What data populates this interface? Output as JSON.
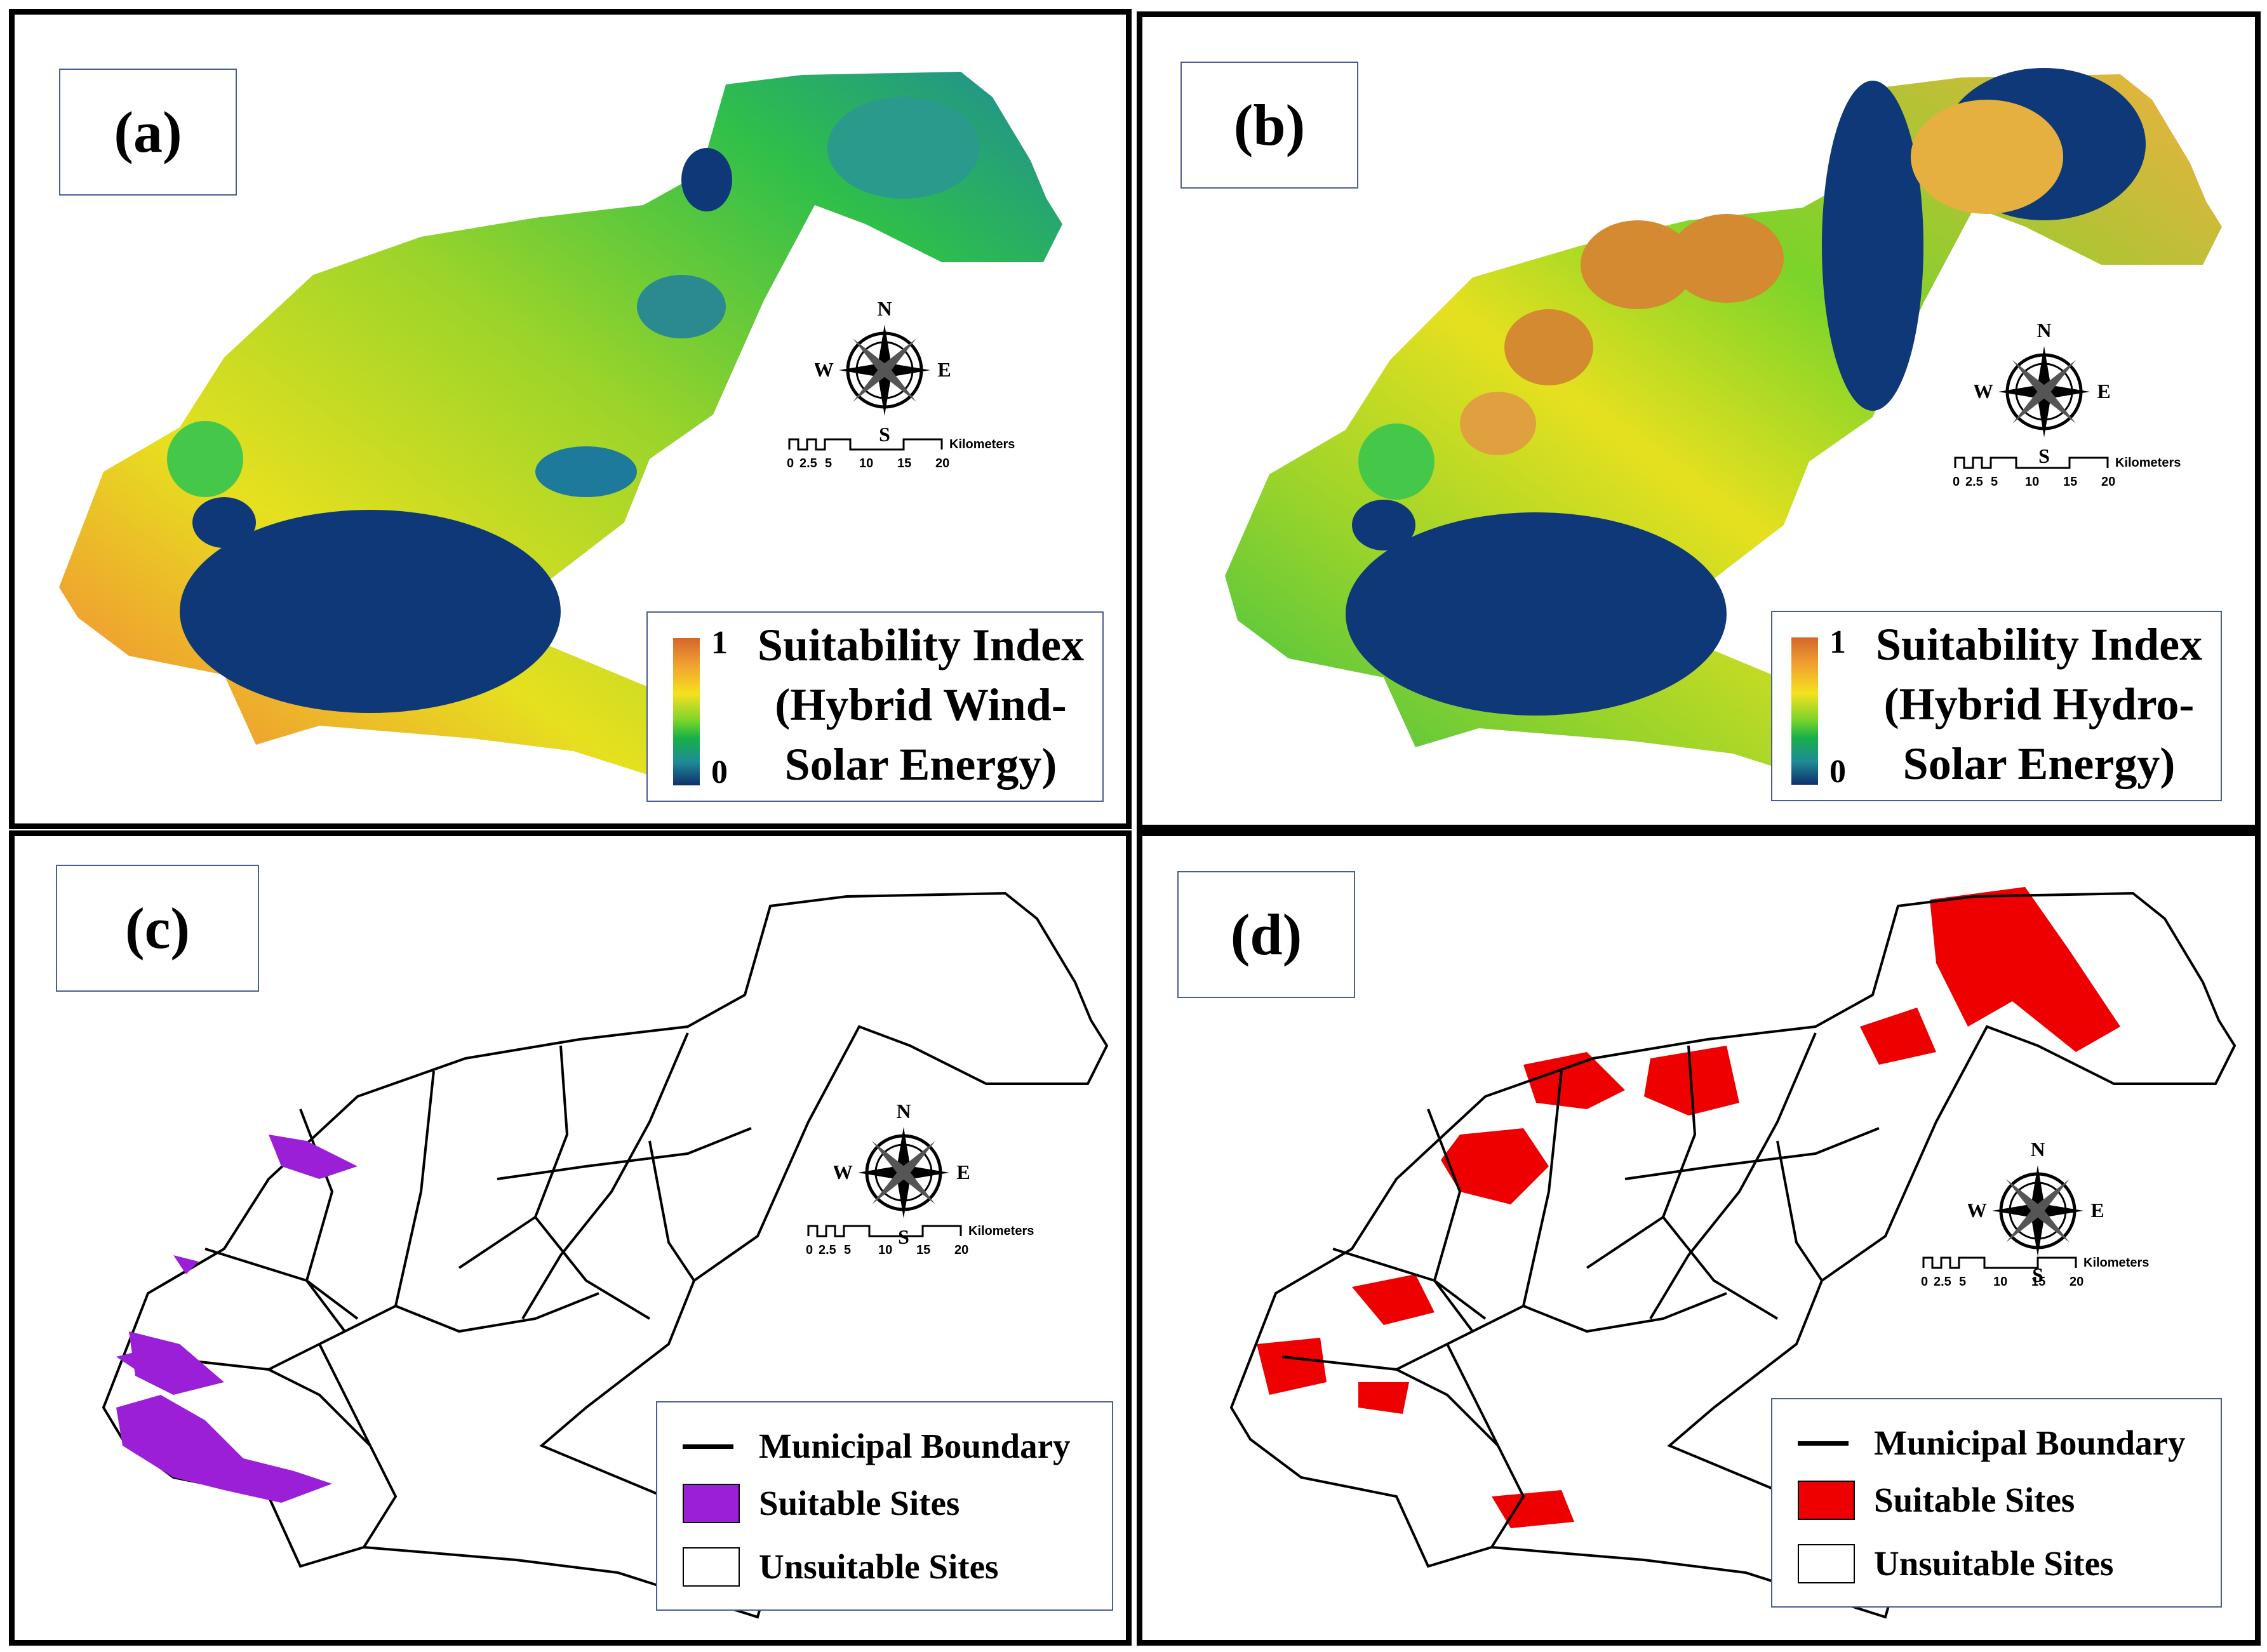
{
  "panels": {
    "a": {
      "label": "(a)"
    },
    "b": {
      "label": "(b)"
    },
    "c": {
      "label": "(c)"
    },
    "d": {
      "label": "(d)"
    }
  },
  "compass": {
    "n": "N",
    "s": "S",
    "e": "E",
    "w": "W"
  },
  "scalebar": {
    "unit": "Kilometers",
    "ticks": [
      "0",
      "2.5",
      "5",
      "10",
      "15",
      "20"
    ]
  },
  "legend_a": {
    "max": "1",
    "min": "0",
    "line1": "Suitability Index",
    "line2": "(Hybrid Wind-",
    "line3": "Solar Energy)"
  },
  "legend_b": {
    "max": "1",
    "min": "0",
    "line1": "Suitability Index",
    "line2": "(Hybrid Hydro-",
    "line3": "Solar Energy)"
  },
  "legend_cd": {
    "boundary": "Municipal Boundary",
    "suitable": "Suitable Sites",
    "unsuitable": "Unsuitable Sites"
  },
  "colors": {
    "high": "#d4662a",
    "mid": "#f5e11f",
    "green": "#18b048",
    "low": "#0f2f6e",
    "suitable_c": "#9b1fd6",
    "suitable_d": "#ee0000",
    "frame": "#000000",
    "legend_border": "#4a5f8f"
  }
}
